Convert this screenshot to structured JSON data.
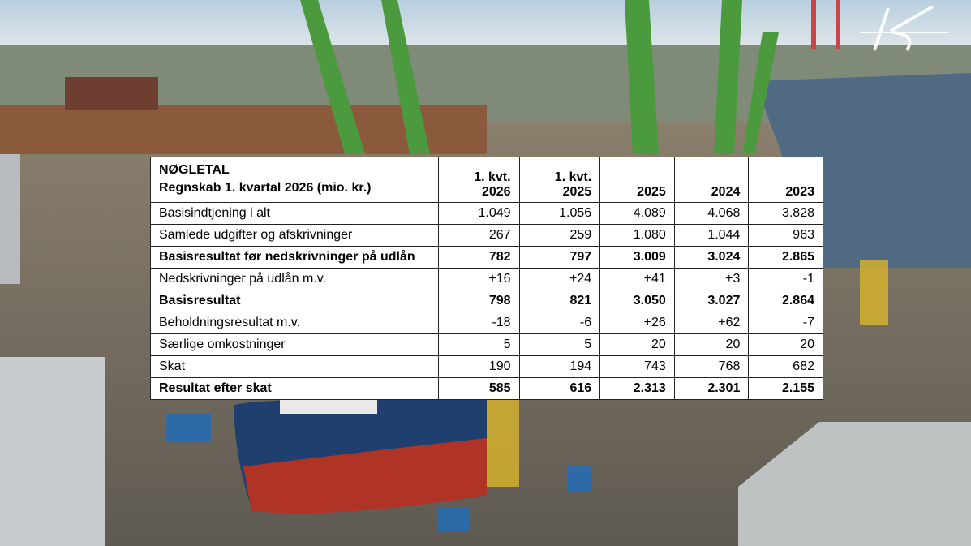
{
  "table": {
    "header": {
      "title": "NØGLETAL",
      "subtitle": "Regnskab 1. kvartal 2026 (mio. kr.)"
    },
    "columns": [
      [
        "1. kvt.",
        "2026"
      ],
      [
        "1. kvt.",
        "2025"
      ],
      [
        "2025"
      ],
      [
        "2024"
      ],
      [
        "2023"
      ]
    ],
    "rows": [
      {
        "label": "Basisindtjening i alt",
        "values": [
          "1.049",
          "1.056",
          "4.089",
          "4.068",
          "3.828"
        ],
        "bold": false
      },
      {
        "label": "Samlede udgifter og afskrivninger",
        "values": [
          "267",
          "259",
          "1.080",
          "1.044",
          "963"
        ],
        "bold": false
      },
      {
        "label": "Basisresultat før nedskrivninger på udlån",
        "values": [
          "782",
          "797",
          "3.009",
          "3.024",
          "2.865"
        ],
        "bold": true
      },
      {
        "label": "Nedskrivninger på udlån m.v.",
        "values": [
          "+16",
          "+24",
          "+41",
          "+3",
          "-1"
        ],
        "bold": false
      },
      {
        "label": "Basisresultat",
        "values": [
          "798",
          "821",
          "3.050",
          "3.027",
          "2.864"
        ],
        "bold": true
      },
      {
        "label": "Beholdningsresultat m.v.",
        "values": [
          "-18",
          "-6",
          "+26",
          "+62",
          "-7"
        ],
        "bold": false
      },
      {
        "label": "Særlige omkostninger",
        "values": [
          "5",
          "5",
          "20",
          "20",
          "20"
        ],
        "bold": false
      },
      {
        "label": "Skat",
        "values": [
          "190",
          "194",
          "743",
          "768",
          "682"
        ],
        "bold": false
      },
      {
        "label": "Resultat efter skat",
        "values": [
          "585",
          "616",
          "2.313",
          "2.301",
          "2.155"
        ],
        "bold": true
      }
    ]
  }
}
